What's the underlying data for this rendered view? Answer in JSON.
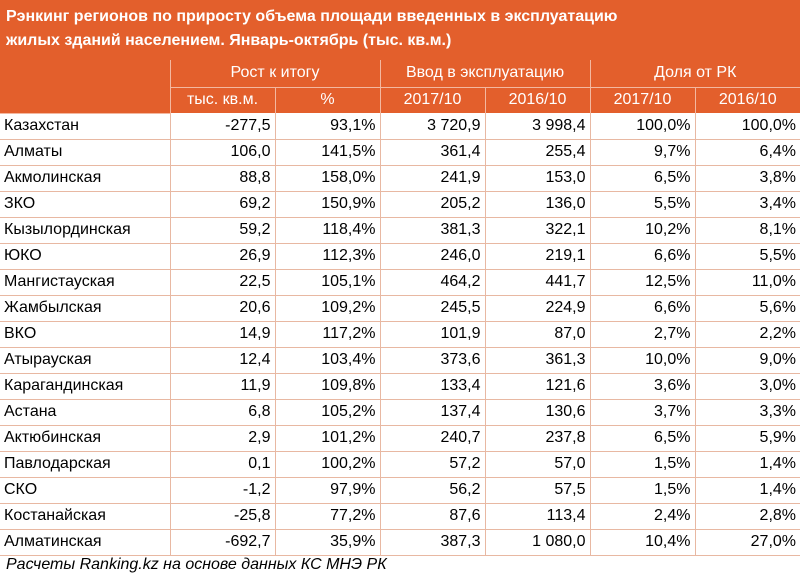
{
  "title_line1": "Рэнкинг регионов по приросту объема площади введенных в эксплуатацию",
  "title_line2": "жилых зданий населением. Январь-октябрь (тыс. кв.м.)",
  "groups": [
    "Рост к итогу",
    "Ввод в эксплуатацию",
    "Доля от РК"
  ],
  "subheaders": [
    "тыс. кв.м.",
    "%",
    "2017/10",
    "2016/10",
    "2017/10",
    "2016/10"
  ],
  "rows": [
    [
      "Казахстан",
      "-277,5",
      "93,1%",
      "3 720,9",
      "3 998,4",
      "100,0%",
      "100,0%"
    ],
    [
      "Алматы",
      "106,0",
      "141,5%",
      "361,4",
      "255,4",
      "9,7%",
      "6,4%"
    ],
    [
      "Акмолинская",
      "88,8",
      "158,0%",
      "241,9",
      "153,0",
      "6,5%",
      "3,8%"
    ],
    [
      "ЗКО",
      "69,2",
      "150,9%",
      "205,2",
      "136,0",
      "5,5%",
      "3,4%"
    ],
    [
      "Кызылординская",
      "59,2",
      "118,4%",
      "381,3",
      "322,1",
      "10,2%",
      "8,1%"
    ],
    [
      "ЮКО",
      "26,9",
      "112,3%",
      "246,0",
      "219,1",
      "6,6%",
      "5,5%"
    ],
    [
      "Мангистауская",
      "22,5",
      "105,1%",
      "464,2",
      "441,7",
      "12,5%",
      "11,0%"
    ],
    [
      "Жамбылская",
      "20,6",
      "109,2%",
      "245,5",
      "224,9",
      "6,6%",
      "5,6%"
    ],
    [
      "ВКО",
      "14,9",
      "117,2%",
      "101,9",
      "87,0",
      "2,7%",
      "2,2%"
    ],
    [
      "Атырауская",
      "12,4",
      "103,4%",
      "373,6",
      "361,3",
      "10,0%",
      "9,0%"
    ],
    [
      "Карагандинская",
      "11,9",
      "109,8%",
      "133,4",
      "121,6",
      "3,6%",
      "3,0%"
    ],
    [
      "Астана",
      "6,8",
      "105,2%",
      "137,4",
      "130,6",
      "3,7%",
      "3,3%"
    ],
    [
      "Актюбинская",
      "2,9",
      "101,2%",
      "240,7",
      "237,8",
      "6,5%",
      "5,9%"
    ],
    [
      "Павлодарская",
      "0,1",
      "100,2%",
      "57,2",
      "57,0",
      "1,5%",
      "1,4%"
    ],
    [
      "СКО",
      "-1,2",
      "97,9%",
      "56,2",
      "57,5",
      "1,5%",
      "1,4%"
    ],
    [
      "Костанайская",
      "-25,8",
      "77,2%",
      "87,6",
      "113,4",
      "2,4%",
      "2,8%"
    ],
    [
      "Алматинская",
      "-692,7",
      "35,9%",
      "387,3",
      "1 080,0",
      "10,4%",
      "27,0%"
    ]
  ],
  "footer": "Расчеты Ranking.kz на основе данных КС МНЭ РК",
  "colors": {
    "header_bg": "#e35f2c",
    "header_text": "#ffffff",
    "grid": "#e8b8a2"
  }
}
